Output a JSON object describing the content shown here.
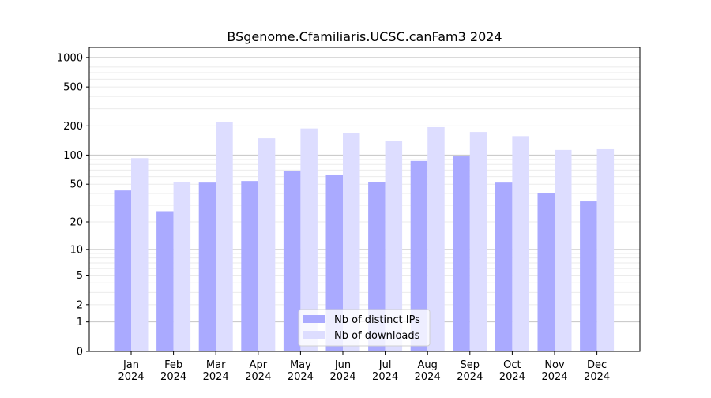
{
  "chart_data": {
    "type": "bar",
    "title": "BSgenome.Cfamiliaris.UCSC.canFam3 2024",
    "xlabel": "",
    "ylabel": "",
    "yscale": "log10(y+1)",
    "ylim": [
      0,
      1270
    ],
    "grid": true,
    "categories": [
      "Jan\n2024",
      "Feb\n2024",
      "Mar\n2024",
      "Apr\n2024",
      "May\n2024",
      "Jun\n2024",
      "Jul\n2024",
      "Aug\n2024",
      "Sep\n2024",
      "Oct\n2024",
      "Nov\n2024",
      "Dec\n2024"
    ],
    "yticks": [
      0,
      1,
      2,
      5,
      10,
      20,
      50,
      100,
      200,
      500,
      1000
    ],
    "series": [
      {
        "name": "Nb of distinct IPs",
        "color": "#aaaaff",
        "values": [
          43,
          26,
          52,
          54,
          69,
          63,
          53,
          87,
          97,
          52,
          40,
          33
        ]
      },
      {
        "name": "Nb of downloads",
        "color": "#ddddff",
        "values": [
          93,
          53,
          217,
          149,
          188,
          170,
          141,
          194,
          173,
          157,
          113,
          115
        ]
      }
    ],
    "legend_position": "bottom-center"
  }
}
